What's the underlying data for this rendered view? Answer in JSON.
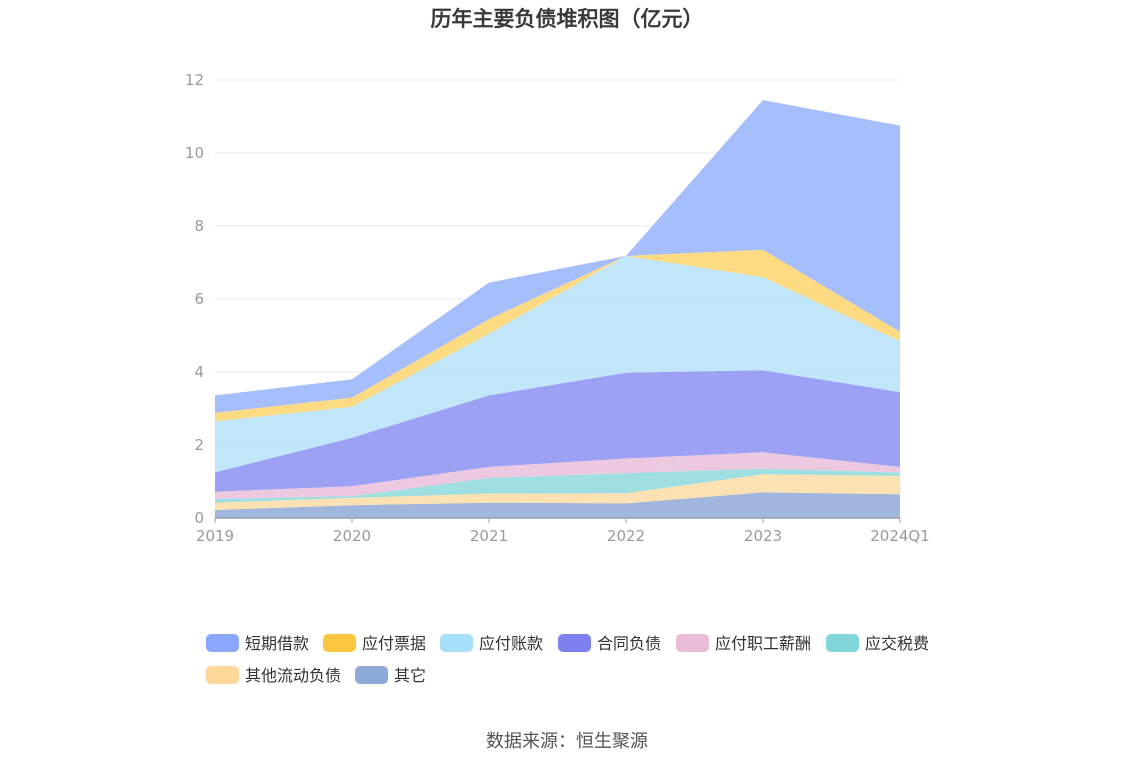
{
  "chart_data": {
    "type": "area",
    "stacked": true,
    "title": "历年主要负债堆积图（亿元）",
    "categories": [
      "2019",
      "2020",
      "2021",
      "2022",
      "2023",
      "2024Q1"
    ],
    "ylim": [
      0,
      12
    ],
    "yticks": [
      0,
      2,
      4,
      6,
      8,
      10,
      12
    ],
    "grid": true,
    "legend_position": "bottom",
    "series": [
      {
        "name": "其它",
        "color": "#8fa9d6",
        "values": [
          0.22,
          0.35,
          0.42,
          0.4,
          0.7,
          0.65
        ]
      },
      {
        "name": "其他流动负债",
        "color": "#fcdca5",
        "values": [
          0.2,
          0.2,
          0.25,
          0.28,
          0.5,
          0.5
        ]
      },
      {
        "name": "应交税费",
        "color": "#8ed8dc",
        "values": [
          0.1,
          0.05,
          0.43,
          0.55,
          0.15,
          0.1
        ]
      },
      {
        "name": "应付职工薪酬",
        "color": "#eac0dc",
        "values": [
          0.2,
          0.27,
          0.3,
          0.4,
          0.45,
          0.15
        ]
      },
      {
        "name": "合同负债",
        "color": "#8c90f2",
        "values": [
          0.53,
          1.33,
          1.96,
          2.35,
          2.25,
          2.05
        ]
      },
      {
        "name": "应付账款",
        "color": "#b6e2f8",
        "values": [
          1.4,
          0.85,
          1.69,
          3.2,
          2.55,
          1.4
        ]
      },
      {
        "name": "应付票据",
        "color": "#fdd56d",
        "values": [
          0.23,
          0.25,
          0.4,
          0.0,
          0.75,
          0.25
        ]
      },
      {
        "name": "短期借款",
        "color": "#98b3fb",
        "values": [
          0.48,
          0.5,
          1.0,
          0.0,
          4.1,
          5.65
        ]
      }
    ],
    "legend": [
      {
        "name": "短期借款",
        "color": "#8ca8fb"
      },
      {
        "name": "应付票据",
        "color": "#fdc73f"
      },
      {
        "name": "应付账款",
        "color": "#a5dff8"
      },
      {
        "name": "合同负债",
        "color": "#7f80ef"
      },
      {
        "name": "应付职工薪酬",
        "color": "#ebbcd8"
      },
      {
        "name": "应交税费",
        "color": "#82d6d9"
      },
      {
        "name": "其他流动负债",
        "color": "#fdd89a"
      },
      {
        "name": "其它",
        "color": "#8eaad8"
      }
    ]
  },
  "source": "数据来源：恒生聚源"
}
